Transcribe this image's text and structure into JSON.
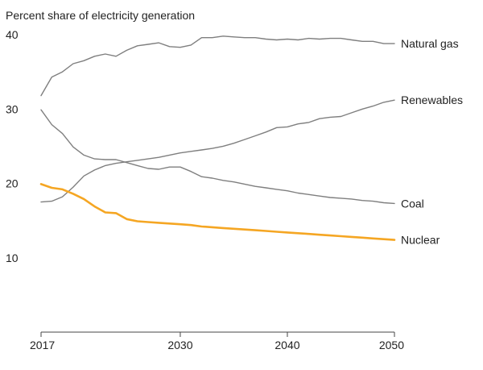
{
  "chart_data": {
    "type": "line",
    "title": "",
    "ylabel": "Percent share of electricity generation",
    "xlabel": "",
    "ylim": [
      0,
      40
    ],
    "xlim": [
      2017,
      2050
    ],
    "grid": false,
    "legend": "direct labels at line ends (right)",
    "y_ticks": [
      10,
      20,
      30,
      40
    ],
    "x_ticks": [
      2017,
      2030,
      2040,
      2050
    ],
    "x": [
      2017,
      2018,
      2019,
      2020,
      2021,
      2022,
      2023,
      2024,
      2025,
      2026,
      2027,
      2028,
      2029,
      2030,
      2031,
      2032,
      2033,
      2034,
      2035,
      2036,
      2037,
      2038,
      2039,
      2040,
      2041,
      2042,
      2043,
      2044,
      2045,
      2046,
      2047,
      2048,
      2049,
      2050
    ],
    "series": [
      {
        "name": "Natural gas",
        "color": "#7f7f7f",
        "values": [
          31.8,
          34.3,
          35.0,
          36.1,
          36.5,
          37.1,
          37.4,
          37.1,
          37.9,
          38.5,
          38.7,
          38.9,
          38.4,
          38.3,
          38.6,
          39.6,
          39.6,
          39.8,
          39.7,
          39.6,
          39.6,
          39.4,
          39.3,
          39.4,
          39.3,
          39.5,
          39.4,
          39.5,
          39.5,
          39.3,
          39.1,
          39.1,
          38.8,
          38.8
        ]
      },
      {
        "name": "Renewables",
        "color": "#7f7f7f",
        "values": [
          17.5,
          17.6,
          18.2,
          19.5,
          21.0,
          21.8,
          22.4,
          22.7,
          22.9,
          23.1,
          23.3,
          23.5,
          23.8,
          24.1,
          24.3,
          24.5,
          24.7,
          25.0,
          25.4,
          25.9,
          26.4,
          26.9,
          27.5,
          27.6,
          28.0,
          28.2,
          28.7,
          28.9,
          29.0,
          29.5,
          30.0,
          30.4,
          30.9,
          31.2
        ]
      },
      {
        "name": "Coal",
        "color": "#7f7f7f",
        "values": [
          29.9,
          27.9,
          26.7,
          24.9,
          23.8,
          23.3,
          23.2,
          23.2,
          22.8,
          22.4,
          22.0,
          21.9,
          22.2,
          22.2,
          21.6,
          20.9,
          20.7,
          20.4,
          20.2,
          19.9,
          19.6,
          19.4,
          19.2,
          19.0,
          18.7,
          18.5,
          18.3,
          18.1,
          18.0,
          17.9,
          17.7,
          17.6,
          17.4,
          17.3
        ]
      },
      {
        "name": "Nuclear",
        "color": "#f5a623",
        "values": [
          19.9,
          19.4,
          19.2,
          18.6,
          17.9,
          16.9,
          16.1,
          16.0,
          15.2,
          14.9,
          14.8,
          14.7,
          14.6,
          14.5,
          14.4,
          14.2,
          14.1,
          14.0,
          13.9,
          13.8,
          13.7,
          13.6,
          13.5,
          13.4,
          13.3,
          13.2,
          13.1,
          13.0,
          12.9,
          12.8,
          12.7,
          12.6,
          12.5,
          12.4
        ]
      }
    ]
  }
}
